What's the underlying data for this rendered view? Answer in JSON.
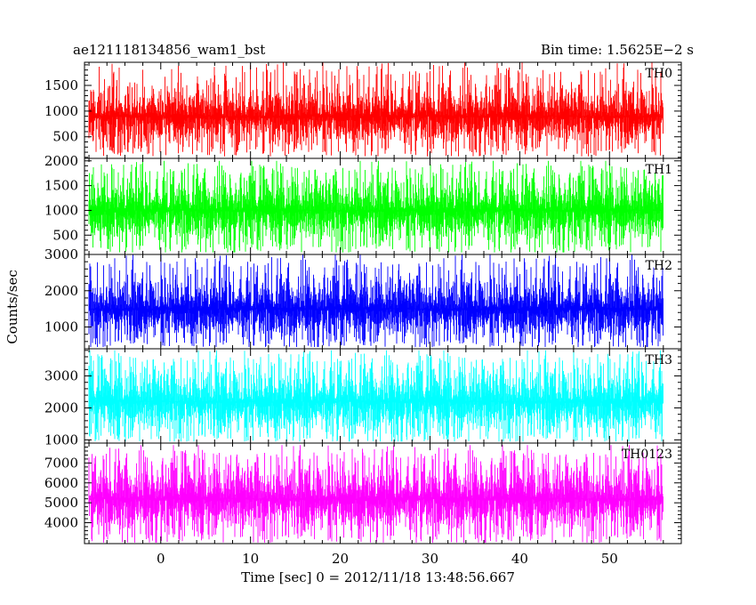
{
  "header": {
    "left": "ae121118134856_wam1_bst",
    "right": "Bin time: 1.5625E−2 s"
  },
  "chart_data": {
    "type": "line",
    "title": "ae121118134856_wam1_bst",
    "subtitle": "Bin time: 1.5625E−2 s",
    "xlabel": "Time [sec] 0 = 2012/11/18 13:48:56.667",
    "ylabel": "Counts/sec",
    "xlim": [
      -8.5,
      58
    ],
    "x_ticks": [
      0,
      10,
      20,
      30,
      40,
      50
    ],
    "data_range_x": [
      -8,
      56
    ],
    "bin_time": 0.015625,
    "grid": false,
    "panels": [
      {
        "name": "TH0",
        "color": "#ff0000",
        "ylim": [
          80,
          1950
        ],
        "y_ticks": [
          500,
          1000,
          1500
        ],
        "mean": 900,
        "band_low": 480,
        "band_high": 1350,
        "min": 120,
        "max": 1950
      },
      {
        "name": "TH1",
        "color": "#00ff00",
        "ylim": [
          110,
          2050
        ],
        "y_ticks": [
          500,
          1000,
          1500,
          2000
        ],
        "mean": 1000,
        "band_low": 500,
        "band_high": 1500,
        "min": 150,
        "max": 2000
      },
      {
        "name": "TH2",
        "color": "#0000ff",
        "ylim": [
          400,
          3000
        ],
        "y_ticks": [
          1000,
          2000,
          3000
        ],
        "mean": 1500,
        "band_low": 900,
        "band_high": 2200,
        "min": 450,
        "max": 3000
      },
      {
        "name": "TH3",
        "color": "#00ffff",
        "ylim": [
          900,
          3850
        ],
        "y_ticks": [
          1000,
          2000,
          3000
        ],
        "mean": 2200,
        "band_low": 1300,
        "band_high": 2900,
        "min": 950,
        "max": 3800
      },
      {
        "name": "TH0123",
        "color": "#ff00ff",
        "ylim": [
          2950,
          8000
        ],
        "y_ticks": [
          4000,
          5000,
          6000,
          7000
        ],
        "mean": 5200,
        "band_low": 4000,
        "band_high": 6600,
        "min": 3000,
        "max": 7900
      }
    ]
  }
}
